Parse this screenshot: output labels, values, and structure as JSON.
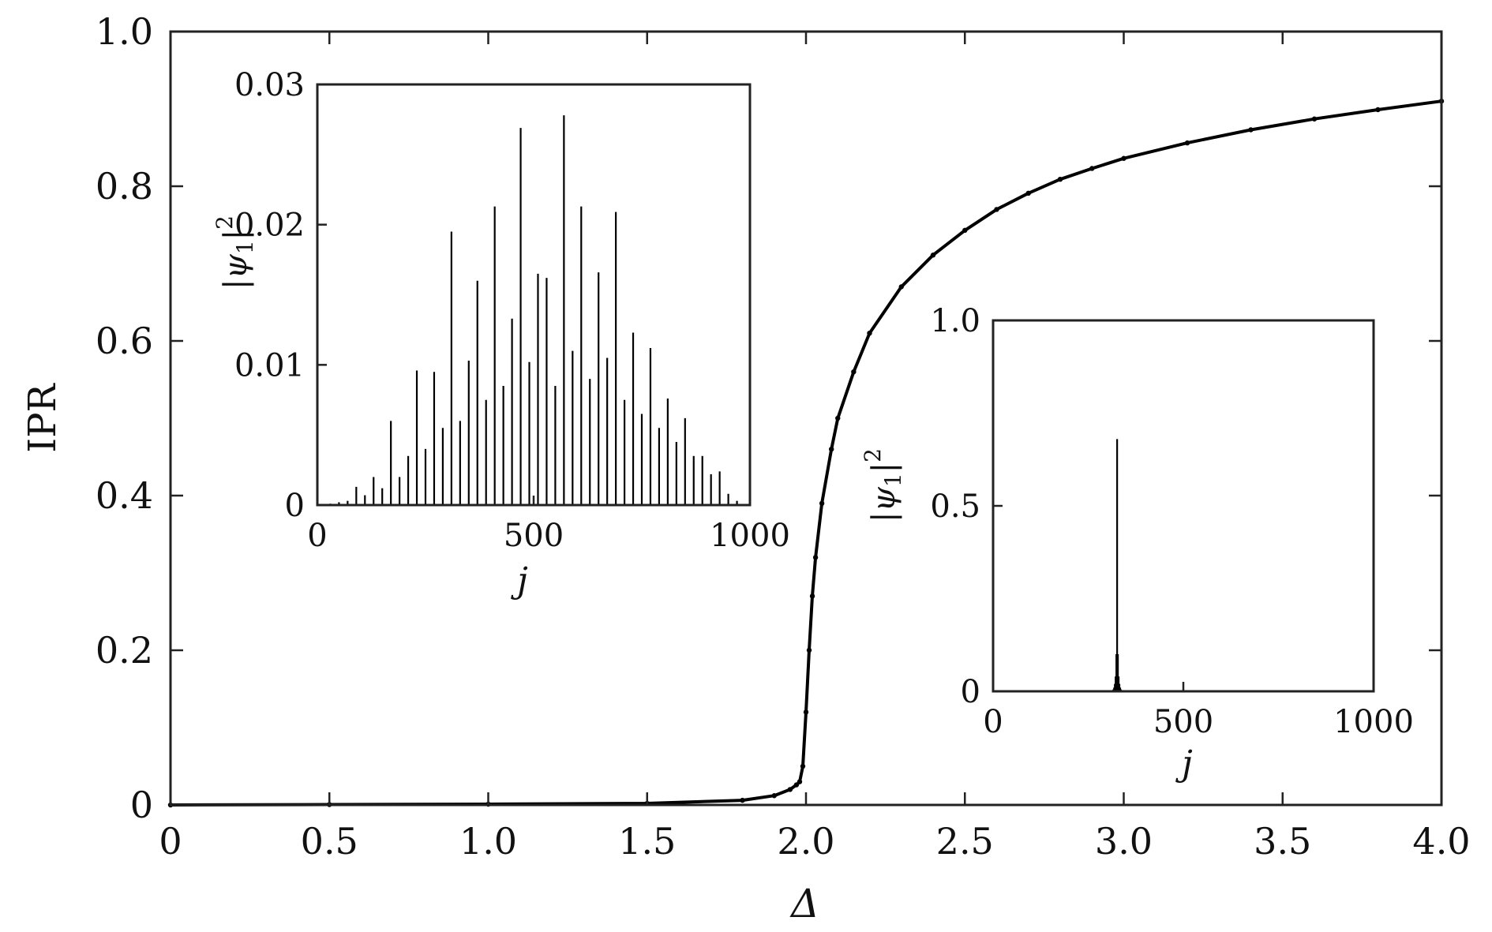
{
  "chart_data": [
    {
      "id": "main",
      "type": "line",
      "title": "",
      "xlabel": "Δ",
      "ylabel": "IPR",
      "xlim": [
        0,
        4
      ],
      "ylim": [
        0,
        1
      ],
      "xticks": [
        0,
        0.5,
        1,
        1.5,
        2,
        2.5,
        3,
        3.5,
        4
      ],
      "xtick_labels": [
        "0",
        "0.5",
        "1.0",
        "1.5",
        "2.0",
        "2.5",
        "3.0",
        "3.5",
        "4.0"
      ],
      "yticks": [
        0,
        0.2,
        0.4,
        0.6,
        0.8,
        1
      ],
      "ytick_labels": [
        "0",
        "0.2",
        "0.4",
        "0.6",
        "0.8",
        "1.0"
      ],
      "grid": false,
      "series": [
        {
          "name": "IPR",
          "x": [
            0,
            0.5,
            1.0,
            1.5,
            1.8,
            1.9,
            1.95,
            1.97,
            1.98,
            1.99,
            2.0,
            2.01,
            2.02,
            2.03,
            2.05,
            2.08,
            2.1,
            2.15,
            2.2,
            2.3,
            2.4,
            2.5,
            2.6,
            2.7,
            2.8,
            2.9,
            3.0,
            3.2,
            3.4,
            3.6,
            3.8,
            4.0
          ],
          "y": [
            0.0,
            0.0005,
            0.001,
            0.002,
            0.006,
            0.012,
            0.02,
            0.026,
            0.03,
            0.05,
            0.12,
            0.2,
            0.27,
            0.32,
            0.39,
            0.46,
            0.5,
            0.56,
            0.61,
            0.67,
            0.711,
            0.743,
            0.77,
            0.791,
            0.809,
            0.823,
            0.836,
            0.856,
            0.873,
            0.887,
            0.899,
            0.91
          ]
        }
      ]
    },
    {
      "id": "inset-extended",
      "type": "bar",
      "xlabel": "j",
      "ylabel": "|ψ1|2",
      "xlim": [
        0,
        1000
      ],
      "ylim": [
        0,
        0.03
      ],
      "xticks": [
        0,
        500,
        1000
      ],
      "xtick_labels": [
        "0",
        "500",
        "1000"
      ],
      "yticks": [
        0,
        0.01,
        0.02,
        0.03
      ],
      "ytick_labels": [
        "0",
        "0.01",
        "0.02",
        "0.03"
      ],
      "grid": false,
      "series": [
        {
          "name": "|ψ1|^2",
          "x": [
            30,
            50,
            70,
            90,
            110,
            130,
            150,
            170,
            190,
            210,
            230,
            250,
            270,
            290,
            310,
            330,
            350,
            370,
            390,
            410,
            430,
            450,
            470,
            490,
            510,
            530,
            550,
            570,
            590,
            610,
            630,
            650,
            670,
            690,
            710,
            730,
            750,
            770,
            790,
            810,
            830,
            850,
            870,
            890,
            910,
            930,
            950,
            970
          ],
          "y": [
            0.0001,
            0.0002,
            0.0003,
            0.0013,
            0.0007,
            0.002,
            0.0012,
            0.006,
            0.002,
            0.0035,
            0.0096,
            0.004,
            0.0095,
            0.0055,
            0.0195,
            0.006,
            0.0103,
            0.016,
            0.0075,
            0.0213,
            0.0085,
            0.0133,
            0.0269,
            0.0102,
            0.0165,
            0.0162,
            0.0085,
            0.0278,
            0.011,
            0.0213,
            0.009,
            0.0166,
            0.0105,
            0.0209,
            0.0075,
            0.0123,
            0.0065,
            0.0112,
            0.0055,
            0.0076,
            0.0045,
            0.0062,
            0.0035,
            0.0035,
            0.0022,
            0.0024,
            0.0008,
            0.0003
          ]
        }
      ]
    },
    {
      "id": "inset-localized",
      "type": "bar",
      "xlabel": "j",
      "ylabel": "|ψ1|2",
      "xlim": [
        0,
        1000
      ],
      "ylim": [
        0,
        1
      ],
      "xticks": [
        0,
        500,
        1000
      ],
      "xtick_labels": [
        "0",
        "500",
        "1000"
      ],
      "yticks": [
        0,
        0.5,
        1
      ],
      "ytick_labels": [
        "0",
        "0.5",
        "1.0"
      ],
      "grid": false,
      "series": [
        {
          "name": "|ψ1|^2",
          "x": [
            312,
            316,
            318,
            320,
            322,
            324,
            326,
            328,
            330,
            332,
            334,
            336,
            340
          ],
          "y": [
            0.002,
            0.005,
            0.01,
            0.02,
            0.04,
            0.1,
            0.68,
            0.1,
            0.04,
            0.02,
            0.01,
            0.005,
            0.002
          ]
        }
      ]
    }
  ]
}
